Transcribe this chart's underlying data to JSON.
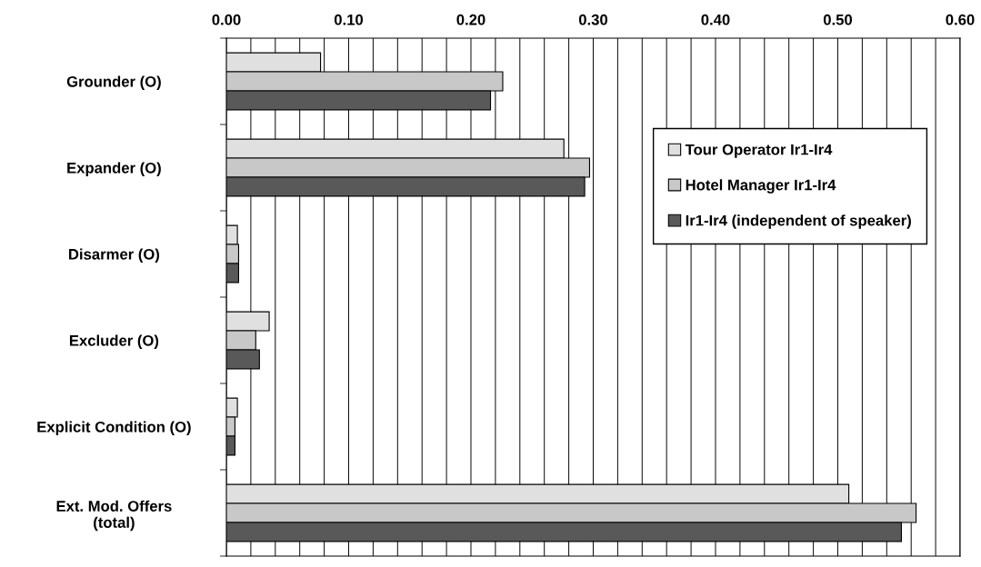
{
  "chart_data": {
    "type": "bar",
    "orientation": "horizontal",
    "categories": [
      "Grounder (O)",
      "Expander (O)",
      "Disarmer (O)",
      "Excluder (O)",
      "Explicit Condition (O)",
      "Ext. Mod. Offers\n(total)"
    ],
    "series": [
      {
        "name": "Tour Operator Ir1-Ir4",
        "color": "#e0e0e0",
        "values": [
          0.077,
          0.276,
          0.009,
          0.035,
          0.009,
          0.509
        ]
      },
      {
        "name": "Hotel Manager Ir1-Ir4",
        "color": "#c8c8c8",
        "values": [
          0.226,
          0.297,
          0.01,
          0.024,
          0.007,
          0.564
        ]
      },
      {
        "name": "Ir1-Ir4 (independent of speaker)",
        "color": "#595959",
        "values": [
          0.216,
          0.293,
          0.01,
          0.027,
          0.007,
          0.552
        ]
      }
    ],
    "xlim": [
      0,
      0.6
    ],
    "xticks": [
      {
        "value": 0,
        "label": "0.00"
      },
      {
        "value": 0.02,
        "label": null
      },
      {
        "value": 0.04,
        "label": null
      },
      {
        "value": 0.06,
        "label": null
      },
      {
        "value": 0.08,
        "label": null
      },
      {
        "value": 0.1,
        "label": "0.10"
      },
      {
        "value": 0.12,
        "label": null
      },
      {
        "value": 0.14,
        "label": null
      },
      {
        "value": 0.16,
        "label": null
      },
      {
        "value": 0.18,
        "label": null
      },
      {
        "value": 0.2,
        "label": "0.20"
      },
      {
        "value": 0.22,
        "label": null
      },
      {
        "value": 0.24,
        "label": null
      },
      {
        "value": 0.26,
        "label": null
      },
      {
        "value": 0.28,
        "label": null
      },
      {
        "value": 0.3,
        "label": "0.30"
      },
      {
        "value": 0.32,
        "label": null
      },
      {
        "value": 0.34,
        "label": null
      },
      {
        "value": 0.36,
        "label": null
      },
      {
        "value": 0.38,
        "label": null
      },
      {
        "value": 0.4,
        "label": "0.40"
      },
      {
        "value": 0.42,
        "label": null
      },
      {
        "value": 0.44,
        "label": null
      },
      {
        "value": 0.46,
        "label": null
      },
      {
        "value": 0.48,
        "label": null
      },
      {
        "value": 0.5,
        "label": "0.50"
      },
      {
        "value": 0.52,
        "label": null
      },
      {
        "value": 0.54,
        "label": null
      },
      {
        "value": 0.56,
        "label": null
      },
      {
        "value": 0.58,
        "label": null
      },
      {
        "value": 0.6,
        "label": "0.60"
      }
    ],
    "grid": "x",
    "legend": "top right"
  }
}
